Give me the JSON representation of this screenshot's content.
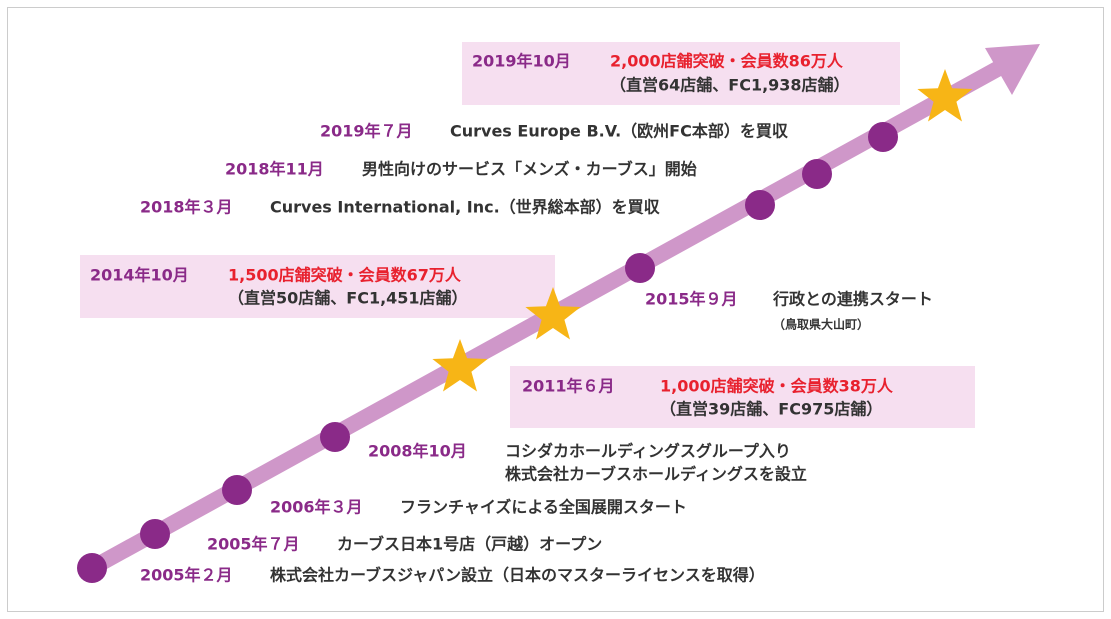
{
  "events": [
    {
      "date": "2005年２月",
      "lines": [
        "株式会社カーブスジャパン設立（日本のマスターライセンスを取得）"
      ]
    },
    {
      "date": "2005年７月",
      "lines": [
        "カーブス日本1号店（戸越）オープン"
      ]
    },
    {
      "date": "2006年３月",
      "lines": [
        "フランチャイズによる全国展開スタート"
      ]
    },
    {
      "date": "2008年10月",
      "lines": [
        "コシダカホールディングスグループ入り",
        "株式会社カーブスホールディングスを設立"
      ]
    },
    {
      "date": "2011年６月",
      "headline": "1,000店舗突破・会員数38万人",
      "detail": "（直営39店舗、FC975店舗）"
    },
    {
      "date": "2014年10月",
      "headline": "1,500店舗突破・会員数67万人",
      "detail": "（直営50店舗、FC1,451店舗）"
    },
    {
      "date": "2015年９月",
      "lines": [
        "行政との連携スタート"
      ],
      "note": "（鳥取県大山町）"
    },
    {
      "date": "2018年３月",
      "lines": [
        "Curves International, Inc.（世界総本部）を買収"
      ]
    },
    {
      "date": "2018年11月",
      "lines": [
        "男性向けのサービス「メンズ・カーブス」開始"
      ]
    },
    {
      "date": "2019年７月",
      "lines": [
        "Curves Europe B.V.（欧州FC本部）を買収"
      ]
    },
    {
      "date": "2019年10月",
      "headline": "2,000店舗突破・会員数86万人",
      "detail": "（直営64店舗、FC1,938店舗）"
    }
  ]
}
